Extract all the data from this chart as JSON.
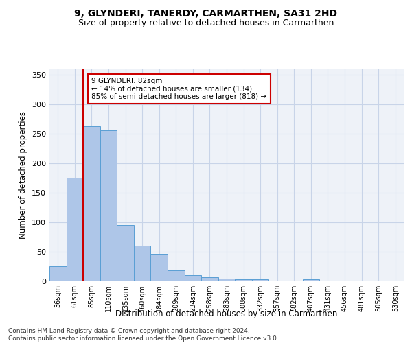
{
  "title": "9, GLYNDERI, TANERDY, CARMARTHEN, SA31 2HD",
  "subtitle": "Size of property relative to detached houses in Carmarthen",
  "xlabel": "Distribution of detached houses by size in Carmarthen",
  "ylabel": "Number of detached properties",
  "categories": [
    "36sqm",
    "61sqm",
    "85sqm",
    "110sqm",
    "135sqm",
    "160sqm",
    "184sqm",
    "209sqm",
    "234sqm",
    "258sqm",
    "283sqm",
    "308sqm",
    "332sqm",
    "357sqm",
    "382sqm",
    "407sqm",
    "431sqm",
    "456sqm",
    "481sqm",
    "505sqm",
    "530sqm"
  ],
  "values": [
    26,
    175,
    263,
    255,
    95,
    60,
    46,
    19,
    10,
    7,
    5,
    4,
    4,
    0,
    0,
    4,
    0,
    0,
    1,
    0,
    0
  ],
  "bar_color": "#aec6e8",
  "bar_edge_color": "#5a9fd4",
  "vline_x_index": 1.5,
  "vline_color": "#cc0000",
  "annotation_text": "9 GLYNDERI: 82sqm\n← 14% of detached houses are smaller (134)\n85% of semi-detached houses are larger (818) →",
  "annotation_box_color": "#ffffff",
  "annotation_box_edge": "#cc0000",
  "ylim": [
    0,
    360
  ],
  "yticks": [
    0,
    50,
    100,
    150,
    200,
    250,
    300,
    350
  ],
  "grid_color": "#c8d4e8",
  "bg_color": "#eef2f8",
  "footer": "Contains HM Land Registry data © Crown copyright and database right 2024.\nContains public sector information licensed under the Open Government Licence v3.0.",
  "title_fontsize": 10,
  "subtitle_fontsize": 9,
  "xlabel_fontsize": 8.5,
  "ylabel_fontsize": 8.5,
  "footer_fontsize": 6.5,
  "annot_fontsize": 7.5
}
